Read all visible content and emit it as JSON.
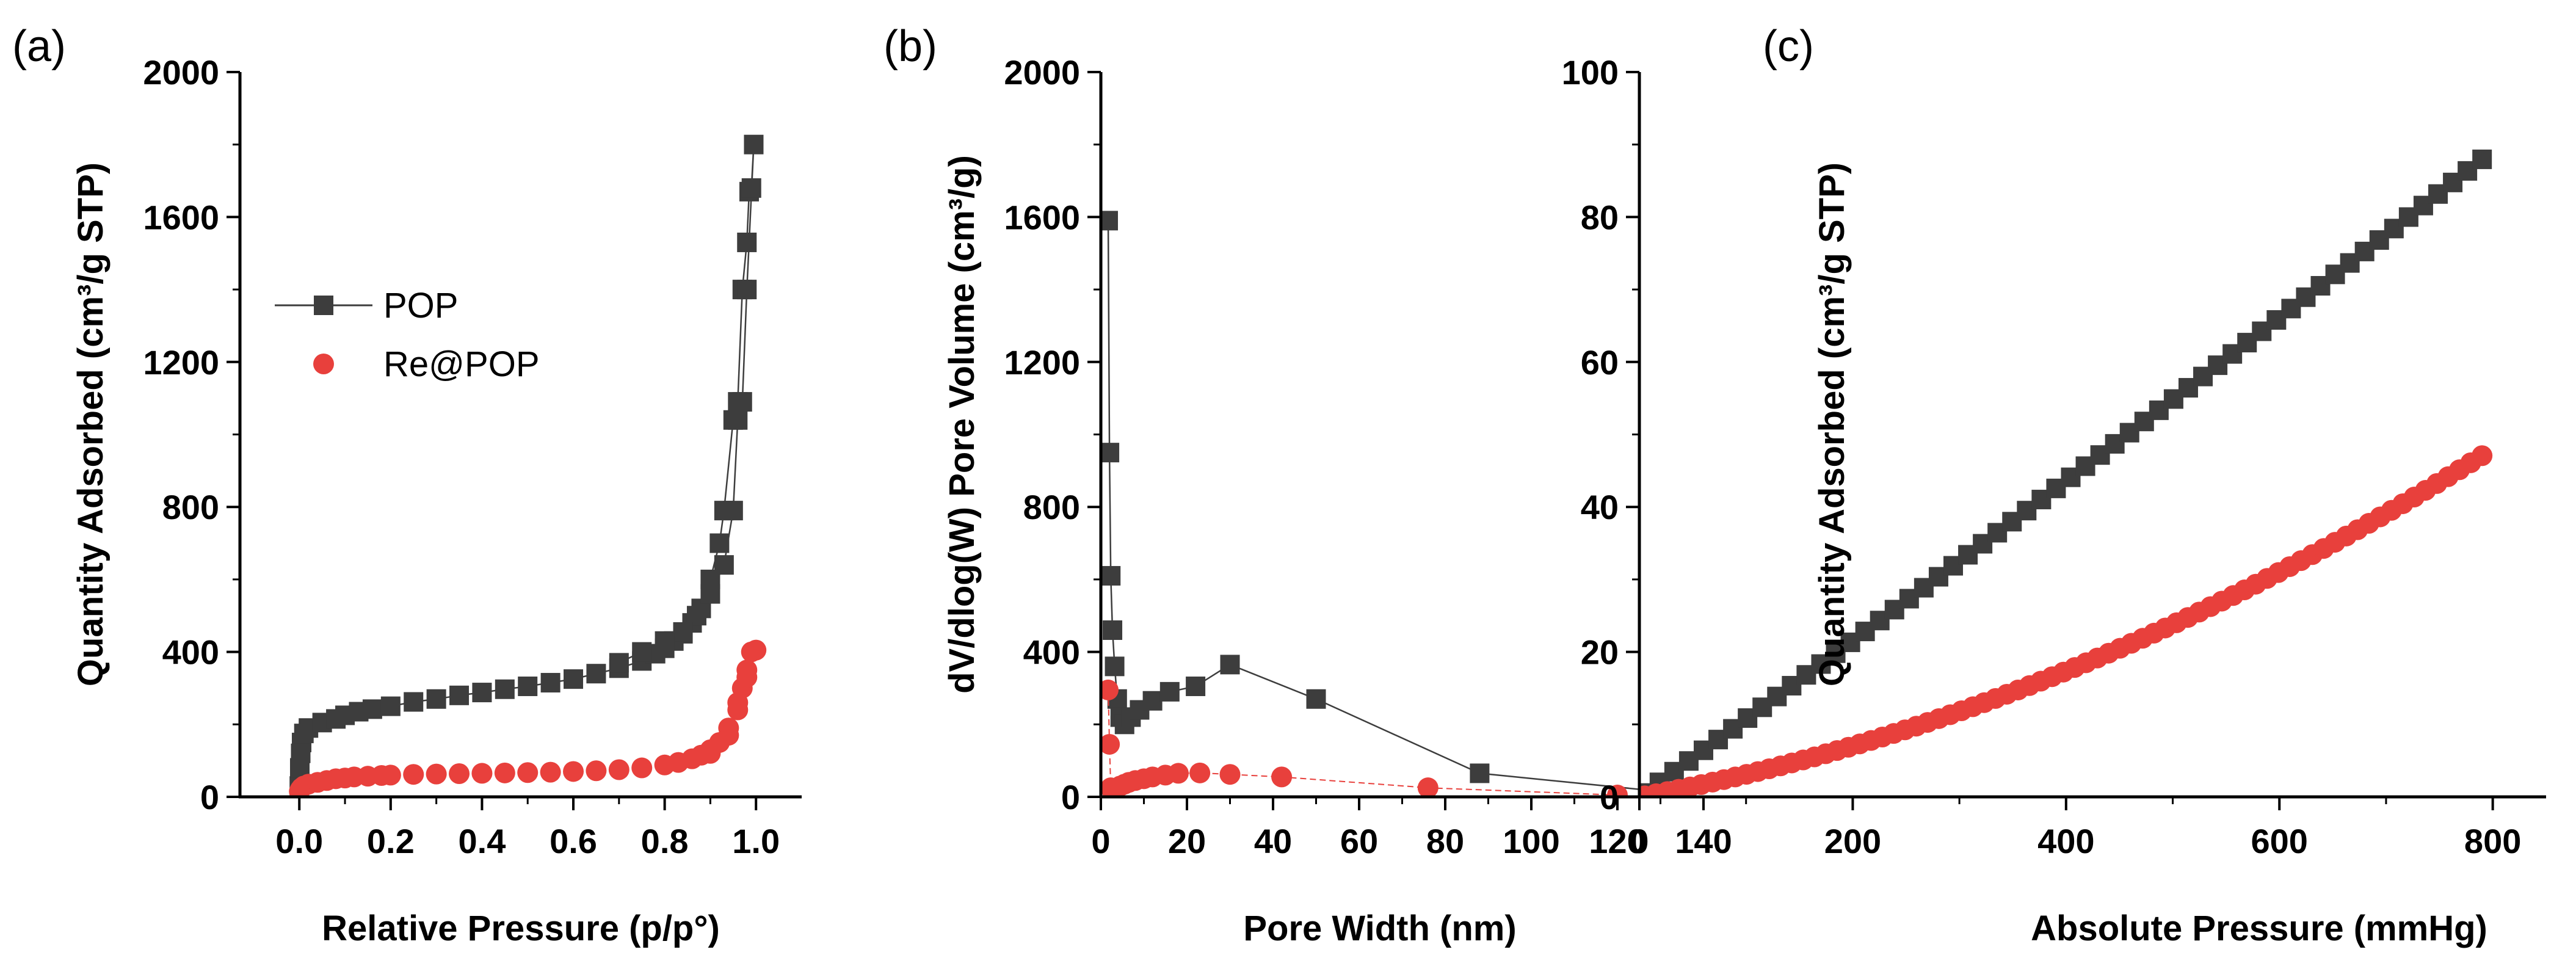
{
  "chart_data": [
    {
      "type": "scatter",
      "panel": "(a)",
      "xlabel": "Relative Pressure (p/p°)",
      "ylabel": "Quantity Adsorbed (cm³/g STP)",
      "xlim": [
        -0.13,
        1.1
      ],
      "ylim": [
        0,
        2000
      ],
      "xticks": [
        0.0,
        0.2,
        0.4,
        0.6,
        0.8,
        1.0
      ],
      "xtick_labels": [
        "0.0",
        "0.2",
        "0.4",
        "0.6",
        "0.8",
        "1.0"
      ],
      "yticks": [
        0,
        400,
        800,
        1200,
        1600,
        2000
      ],
      "ytick_labels": [
        "0",
        "400",
        "800",
        "1200",
        "1600",
        "2000"
      ],
      "legend": [
        "POP",
        "Re@POP"
      ],
      "series": [
        {
          "name": "POP",
          "color": "#3d3d3d",
          "marker": "square",
          "line": true,
          "x": [
            0.0,
            0.001,
            0.003,
            0.005,
            0.01,
            0.02,
            0.05,
            0.08,
            0.1,
            0.13,
            0.16,
            0.2,
            0.25,
            0.3,
            0.35,
            0.4,
            0.45,
            0.5,
            0.55,
            0.6,
            0.65,
            0.7,
            0.75,
            0.78,
            0.8,
            0.82,
            0.84,
            0.86,
            0.88,
            0.9,
            0.92,
            0.93,
            0.95,
            0.96,
            0.97,
            0.98,
            0.985,
            0.99,
            0.995,
            0.98,
            0.97,
            0.96,
            0.95,
            0.93,
            0.9,
            0.87,
            0.84,
            0.8,
            0.75,
            0.7
          ],
          "y": [
            30,
            80,
            120,
            150,
            175,
            190,
            205,
            215,
            225,
            235,
            242,
            250,
            262,
            270,
            280,
            288,
            297,
            305,
            315,
            325,
            340,
            355,
            375,
            395,
            410,
            430,
            450,
            480,
            520,
            600,
            700,
            790,
            1040,
            1090,
            1400,
            1530,
            1670,
            1680,
            1800,
            1400,
            1090,
            1040,
            790,
            640,
            560,
            500,
            455,
            430,
            400,
            370
          ]
        },
        {
          "name": "Re@POP",
          "color": "#e8403c",
          "marker": "circle",
          "line": false,
          "x": [
            0.0,
            0.002,
            0.005,
            0.01,
            0.02,
            0.04,
            0.06,
            0.08,
            0.1,
            0.12,
            0.15,
            0.18,
            0.2,
            0.25,
            0.3,
            0.35,
            0.4,
            0.45,
            0.5,
            0.55,
            0.6,
            0.65,
            0.7,
            0.75,
            0.8,
            0.83,
            0.86,
            0.88,
            0.9,
            0.92,
            0.94,
            0.96,
            0.97,
            0.98,
            0.99,
            1.0,
            0.98,
            0.96,
            0.94,
            0.9
          ],
          "y": [
            15,
            20,
            25,
            30,
            35,
            40,
            45,
            50,
            52,
            55,
            57,
            59,
            60,
            62,
            63,
            64,
            65,
            66,
            67,
            68,
            70,
            72,
            75,
            80,
            88,
            95,
            105,
            115,
            130,
            150,
            190,
            260,
            300,
            350,
            400,
            405,
            330,
            240,
            170,
            120
          ]
        }
      ]
    },
    {
      "type": "line",
      "panel": "(b)",
      "xlabel": "Pore Width (nm)",
      "ylabel": "dV/dlog(W) Pore Volume (cm³/g)",
      "xlim": [
        0,
        140
      ],
      "ylim": [
        0,
        2000
      ],
      "xticks": [
        0,
        20,
        40,
        60,
        80,
        100,
        120,
        140
      ],
      "xtick_labels": [
        "0",
        "20",
        "40",
        "60",
        "80",
        "100",
        "120",
        "140"
      ],
      "yticks": [
        0,
        400,
        800,
        1200,
        1600,
        2000
      ],
      "ytick_labels": [
        "0",
        "400",
        "800",
        "1200",
        "1600",
        "2000"
      ],
      "series": [
        {
          "name": "POP",
          "color": "#3d3d3d",
          "marker": "square",
          "x": [
            1.7,
            2.0,
            2.3,
            2.7,
            3.2,
            3.8,
            4.5,
            5.5,
            7,
            9,
            12,
            16,
            22,
            30,
            50,
            88,
            130
          ],
          "y": [
            1590,
            950,
            610,
            460,
            360,
            270,
            220,
            200,
            220,
            240,
            265,
            290,
            305,
            365,
            270,
            65,
            15
          ]
        },
        {
          "name": "Re@POP",
          "color": "#e8403c",
          "marker": "circle",
          "x": [
            1.7,
            2.0,
            2.3,
            2.7,
            3.2,
            3.8,
            4.5,
            5.5,
            6.5,
            8,
            10,
            12,
            15,
            18,
            23,
            30,
            42,
            76,
            120
          ],
          "y": [
            295,
            145,
            25,
            15,
            20,
            25,
            30,
            35,
            40,
            45,
            50,
            55,
            60,
            65,
            66,
            62,
            55,
            25,
            5
          ]
        }
      ]
    },
    {
      "type": "scatter",
      "panel": "(c)",
      "xlabel": "Absolute Pressure (mmHg)",
      "ylabel": "Quantity Adsorbed (cm³/g STP)",
      "xlim": [
        0,
        850
      ],
      "ylim": [
        0,
        100
      ],
      "xticks": [
        0,
        200,
        400,
        600,
        800
      ],
      "xtick_labels": [
        "0",
        "200",
        "400",
        "600",
        "800"
      ],
      "yticks": [
        0,
        20,
        40,
        60,
        80,
        100
      ],
      "ytick_labels": [
        "0",
        "20",
        "40",
        "60",
        "80",
        "100"
      ],
      "series": [
        {
          "name": "POP",
          "color": "#3d3d3d",
          "marker": "square",
          "function": "pop_co2",
          "x_start": 5,
          "x_end": 790,
          "n": 58
        },
        {
          "name": "Re@POP",
          "color": "#e8403c",
          "marker": "circle",
          "function": "repop_co2",
          "x_start": 5,
          "x_end": 790,
          "n": 75
        }
      ]
    }
  ]
}
